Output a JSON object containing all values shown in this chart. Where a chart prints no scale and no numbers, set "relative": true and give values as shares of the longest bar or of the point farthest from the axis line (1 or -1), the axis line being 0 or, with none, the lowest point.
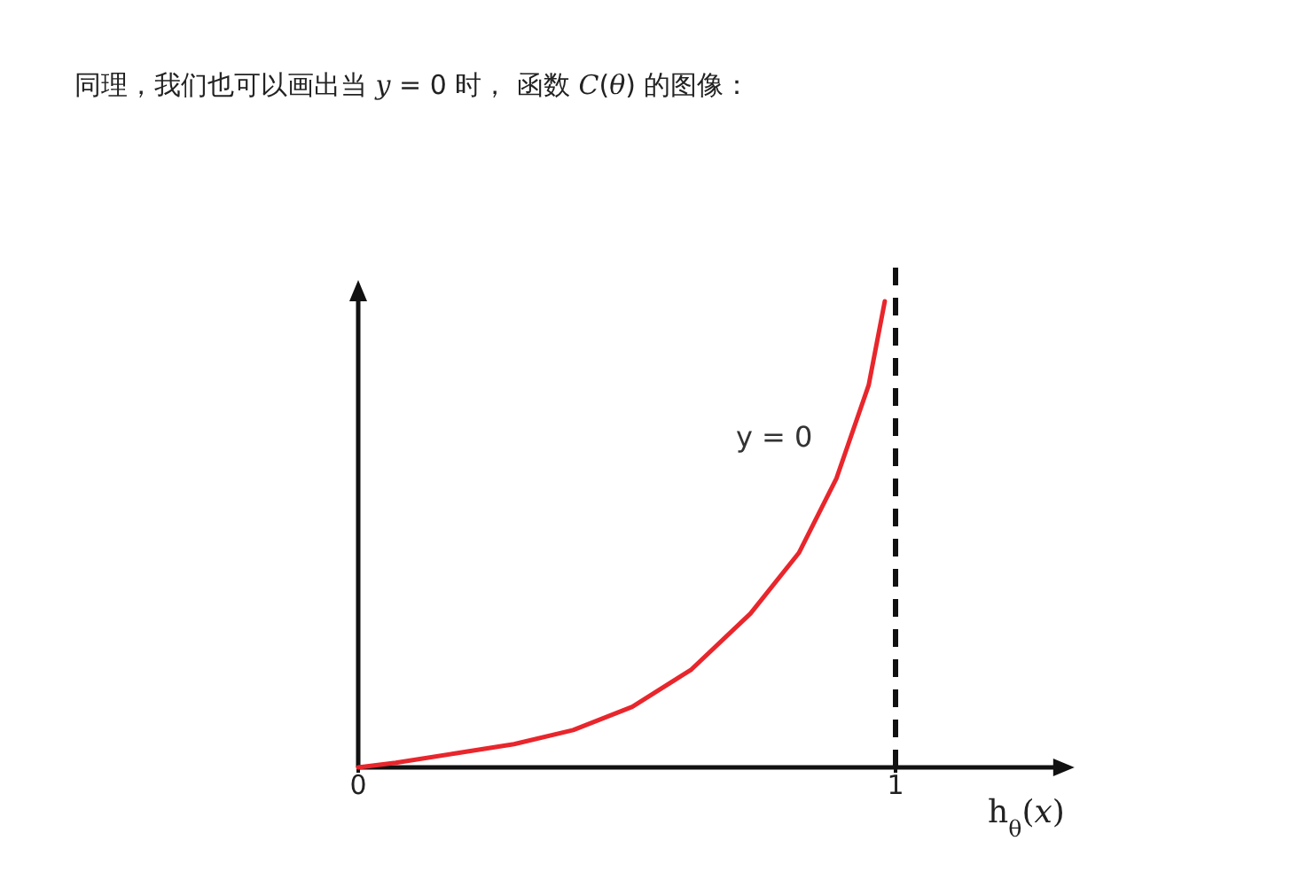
{
  "chart_data": {
    "type": "line",
    "title": "同理，我们也可以画出当 *y* = 0 时， 函数 *C*(*θ*) 的图像：",
    "xlabel": "h$_{θ}$(*x*)",
    "annotations": [
      "y = 0"
    ],
    "relative": true,
    "x": [
      0,
      0.07,
      0.18,
      0.29,
      0.4,
      0.51,
      0.62,
      0.73,
      0.82,
      0.89,
      0.95,
      0.98
    ],
    "values": [
      0,
      0.01,
      0.03,
      0.05,
      0.08,
      0.13,
      0.21,
      0.33,
      0.46,
      0.62,
      0.82,
      1
    ],
    "color": "#e8262c",
    "xlim": [
      0,
      1.3
    ],
    "xticks": [
      0,
      1
    ],
    "ref_lines": [
      {
        "axis": "x",
        "value": 1,
        "color": "#111111",
        "line_style": "dashed"
      }
    ]
  }
}
